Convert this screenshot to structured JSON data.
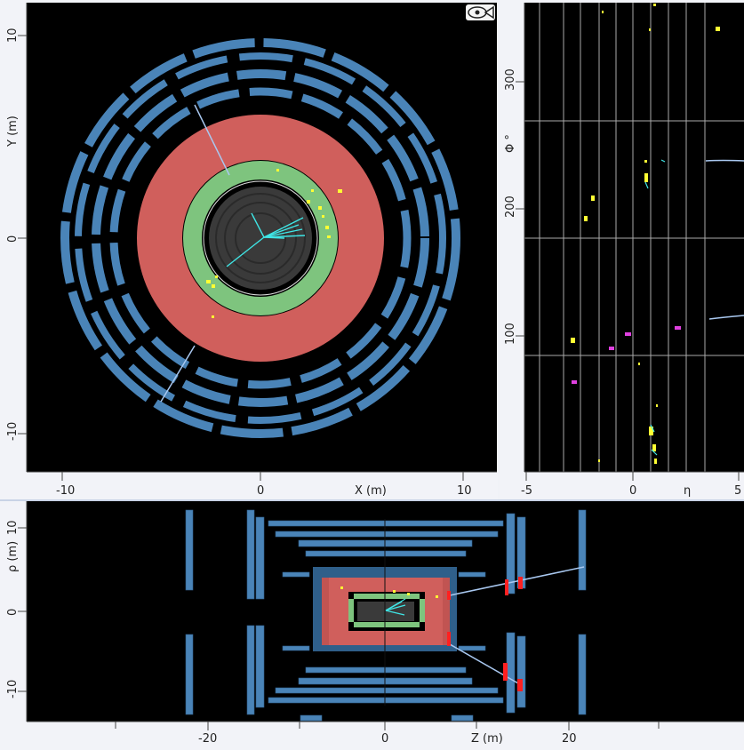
{
  "views": {
    "xy": {
      "x_axis_label": "X (m)",
      "y_axis_label": "Y (m)",
      "x_ticks": [
        "-10",
        "0",
        "10"
      ],
      "y_ticks": [
        "10",
        "0",
        "-10"
      ],
      "icon": "eye-fish-icon"
    },
    "eta_phi": {
      "x_axis_label": "η",
      "y_axis_label": "Φ °",
      "x_ticks": [
        "-5",
        "0",
        "5"
      ],
      "y_ticks": [
        "300",
        "200",
        "100"
      ]
    },
    "rho_z": {
      "x_axis_label": "Z (m)",
      "y_axis_label": "ρ (m)",
      "x_ticks": [
        "-20",
        "0",
        "20"
      ],
      "y_ticks": [
        "10",
        "0",
        "-10"
      ]
    }
  },
  "colors": {
    "background": "#000000",
    "muon_chambers": "#4a84b8",
    "hadronic_calorimeter": "#d05f5c",
    "em_calorimeter": "#7ec47e",
    "tracks": "#3fe6e6",
    "hits": "#ffff33",
    "muon_tracks": "#a9c8f0"
  }
}
